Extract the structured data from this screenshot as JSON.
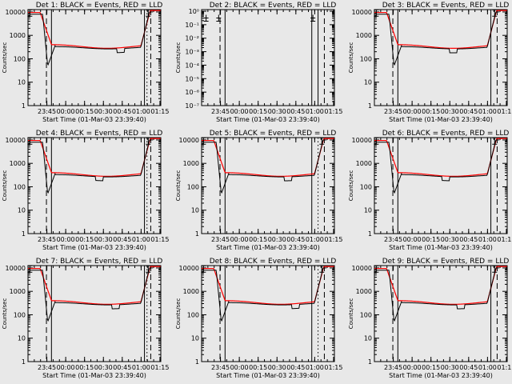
{
  "colors": {
    "background": "#e8e8e8",
    "axes": "#000000",
    "events": "#000000",
    "lld": "#ff0000"
  },
  "chart_data": [
    {
      "type": "line",
      "title": "Det 1: BLACK = Events, RED = LLD",
      "ylabel": "Counts/sec",
      "xlabel": "Start Time (01-Mar-03 23:39:40)",
      "x_ticks": [
        "23:45",
        "00:00",
        "00:15",
        "00:30",
        "00:45",
        "01:00",
        "01:15"
      ],
      "x_range_min": [
        -9.67,
        96
      ],
      "y_ticks": [
        "1",
        "10",
        "100",
        "1000",
        "10000"
      ],
      "y_log_range": [
        0,
        4.1
      ],
      "variant": "normal",
      "step_at": 61,
      "markers": {
        "solid": [
          9,
          83
        ],
        "dashed": [
          5,
          88
        ],
        "dotted": [
          85
        ]
      }
    },
    {
      "type": "line",
      "title": "Det 2: BLACK = Events, RED = LLD",
      "ylabel": "Counts/sec",
      "xlabel": "Start Time (01-Mar-03 23:39:40)",
      "x_ticks": [
        "23:45",
        "00:00",
        "00:15",
        "00:30",
        "00:45",
        "01:00",
        "01:15"
      ],
      "x_range_min": [
        -9.67,
        96
      ],
      "y_ticks": [
        "10⁻⁷",
        "10⁻⁶",
        "10⁻⁵",
        "10⁻⁴",
        "10⁻³",
        "10⁻²",
        "10⁻¹",
        "10⁰"
      ],
      "y_log_range": [
        -7,
        0.12
      ],
      "variant": "empty",
      "markers": {
        "solid": [
          9,
          78,
          83
        ],
        "dashed": [
          5,
          88
        ],
        "dotted": [
          96
        ]
      }
    },
    {
      "type": "line",
      "title": "Det 3: BLACK = Events, RED = LLD",
      "ylabel": "Counts/sec",
      "xlabel": "Start Time (01-Mar-03 23:39:40)",
      "x_ticks": [
        "23:45",
        "00:00",
        "00:15",
        "00:30",
        "00:45",
        "01:00",
        "01:15"
      ],
      "x_range_min": [
        -9.67,
        96
      ],
      "y_ticks": [
        "1",
        "10",
        "100",
        "1000",
        "10000"
      ],
      "y_log_range": [
        0,
        4.1
      ],
      "variant": "normal",
      "step_at": 50,
      "markers": {
        "solid": [
          9,
          83
        ],
        "dashed": [
          5,
          88
        ],
        "dotted": []
      }
    },
    {
      "type": "line",
      "title": "Det 4: BLACK = Events, RED = LLD",
      "ylabel": "Counts/sec",
      "xlabel": "Start Time (01-Mar-03 23:39:40)",
      "x_ticks": [
        "23:45",
        "00:00",
        "00:15",
        "00:30",
        "00:45",
        "01:00",
        "01:15"
      ],
      "x_range_min": [
        -9.67,
        96
      ],
      "y_ticks": [
        "1",
        "10",
        "100",
        "1000",
        "10000"
      ],
      "y_log_range": [
        0,
        4.1
      ],
      "variant": "normal",
      "step_at": 44,
      "markers": {
        "solid": [
          9,
          83
        ],
        "dashed": [
          5,
          88
        ],
        "dotted": [
          85
        ]
      }
    },
    {
      "type": "line",
      "title": "Det 5: BLACK = Events, RED = LLD",
      "ylabel": "Counts/sec",
      "xlabel": "Start Time (01-Mar-03 23:39:40)",
      "x_ticks": [
        "23:45",
        "00:00",
        "00:15",
        "00:30",
        "00:45",
        "01:00",
        "01:15"
      ],
      "x_range_min": [
        -9.67,
        96
      ],
      "y_ticks": [
        "1",
        "10",
        "100",
        "1000",
        "10000"
      ],
      "y_log_range": [
        0,
        4.1
      ],
      "variant": "normal",
      "step_at": 56,
      "markers": {
        "solid": [
          9,
          78
        ],
        "dashed": [
          5,
          88
        ],
        "dotted": [
          83
        ]
      }
    },
    {
      "type": "line",
      "title": "Det 6: BLACK = Events, RED = LLD",
      "ylabel": "Counts/sec",
      "xlabel": "Start Time (01-Mar-03 23:39:40)",
      "x_ticks": [
        "23:45",
        "00:00",
        "00:15",
        "00:30",
        "00:45",
        "01:00",
        "01:15"
      ],
      "x_range_min": [
        -9.67,
        96
      ],
      "y_ticks": [
        "1",
        "10",
        "100",
        "1000",
        "10000"
      ],
      "y_log_range": [
        0,
        4.1
      ],
      "variant": "normal",
      "step_at": 44,
      "markers": {
        "solid": [
          9,
          83
        ],
        "dashed": [
          5,
          88
        ],
        "dotted": []
      }
    },
    {
      "type": "line",
      "title": "Det 7: BLACK = Events, RED = LLD",
      "ylabel": "Counts/sec",
      "xlabel": "Start Time (01-Mar-03 23:39:40)",
      "x_ticks": [
        "23:45",
        "00:00",
        "00:15",
        "00:30",
        "00:45",
        "01:00",
        "01:15"
      ],
      "x_range_min": [
        -9.67,
        96
      ],
      "y_ticks": [
        "1",
        "10",
        "100",
        "1000",
        "10000"
      ],
      "y_log_range": [
        0,
        4.1
      ],
      "variant": "normal",
      "step_at": 57,
      "markers": {
        "solid": [
          9,
          83
        ],
        "dashed": [
          5,
          88
        ],
        "dotted": [
          85
        ]
      }
    },
    {
      "type": "line",
      "title": "Det 8: BLACK = Events, RED = LLD",
      "ylabel": "Counts/sec",
      "xlabel": "Start Time (01-Mar-03 23:39:40)",
      "x_ticks": [
        "23:45",
        "00:00",
        "00:15",
        "00:30",
        "00:45",
        "01:00",
        "01:15"
      ],
      "x_range_min": [
        -9.67,
        96
      ],
      "y_ticks": [
        "1",
        "10",
        "100",
        "1000",
        "10000"
      ],
      "y_log_range": [
        0,
        4.1
      ],
      "variant": "normal",
      "step_at": 62,
      "markers": {
        "solid": [
          9,
          78
        ],
        "dashed": [
          5,
          88
        ],
        "dotted": [
          83
        ]
      }
    },
    {
      "type": "line",
      "title": "Det 9: BLACK = Events, RED = LLD",
      "ylabel": "Counts/sec",
      "xlabel": "Start Time (01-Mar-03 23:39:40)",
      "x_ticks": [
        "23:45",
        "00:00",
        "00:15",
        "00:30",
        "00:45",
        "01:00",
        "01:15"
      ],
      "x_range_min": [
        -9.67,
        96
      ],
      "y_ticks": [
        "1",
        "10",
        "100",
        "1000",
        "10000"
      ],
      "y_log_range": [
        0,
        4.1
      ],
      "variant": "normal",
      "step_at": 56,
      "markers": {
        "solid": [
          9,
          83
        ],
        "dashed": [
          5,
          88
        ],
        "dotted": []
      }
    }
  ]
}
